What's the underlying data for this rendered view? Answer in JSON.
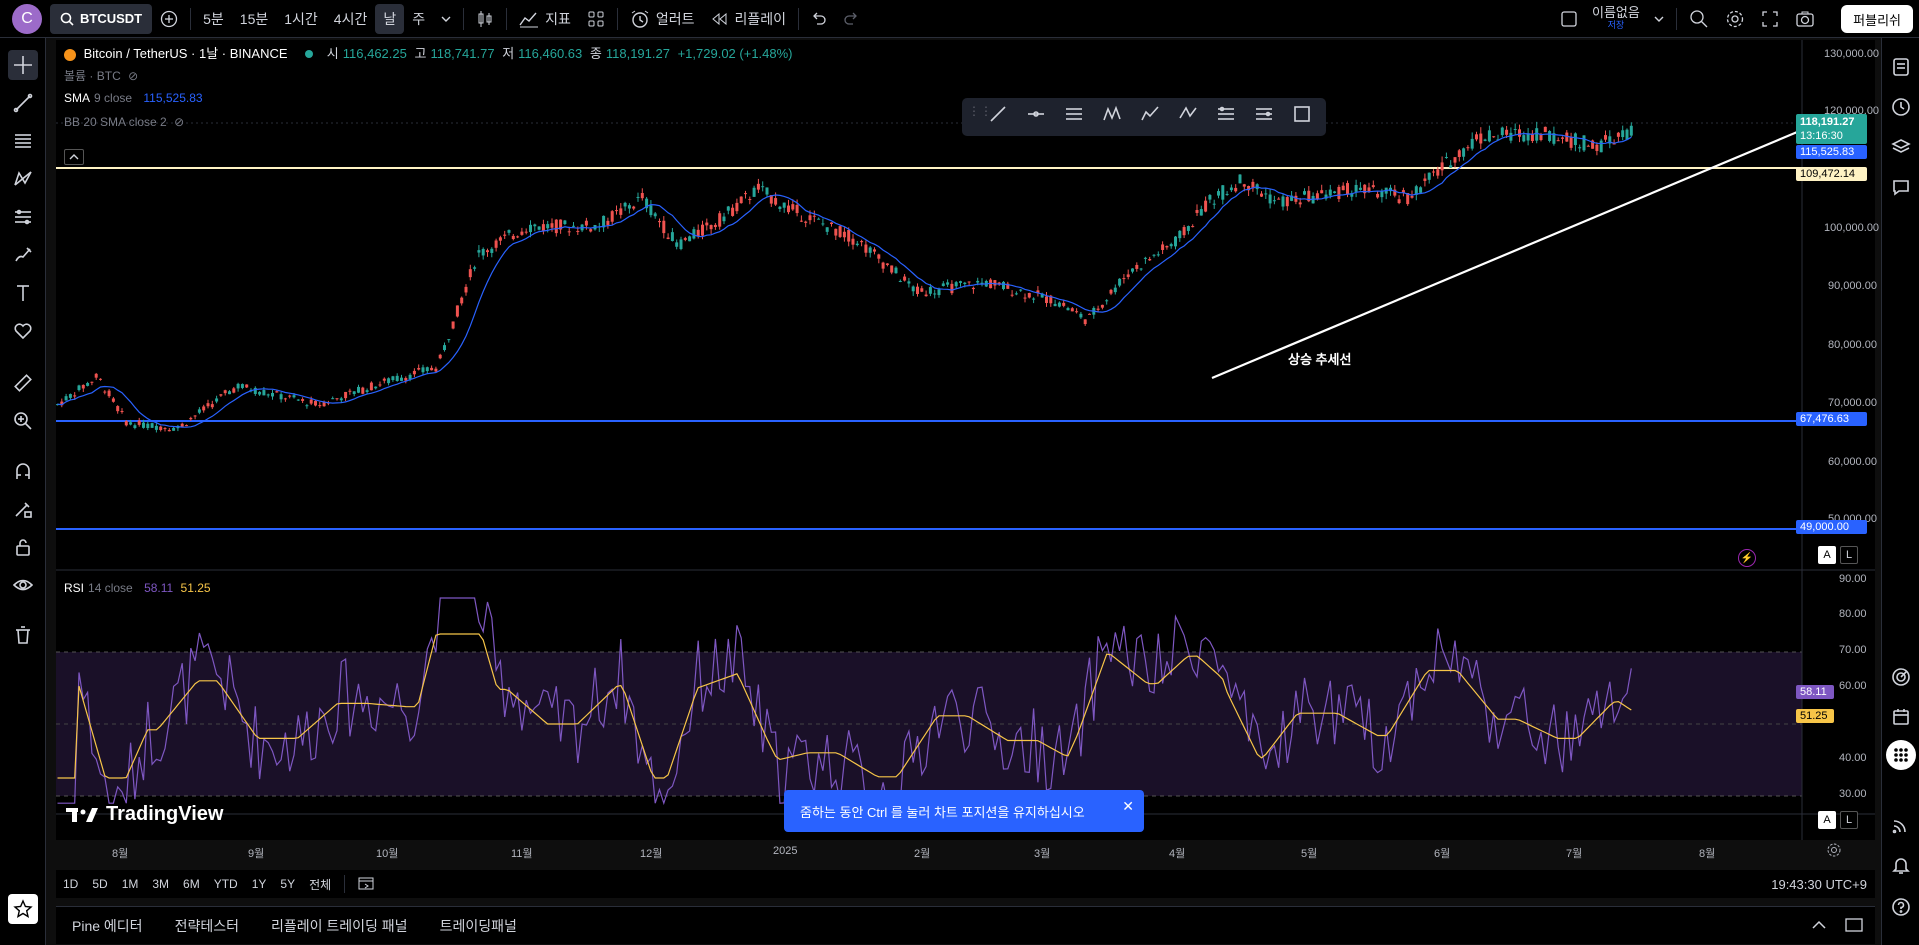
{
  "topbar": {
    "avatar_letter": "C",
    "symbol": "BTCUSDT",
    "timeframes": [
      "5분",
      "15분",
      "1시간",
      "4시간",
      "날",
      "주"
    ],
    "active_timeframe": "날",
    "indicators_label": "지표",
    "alert_label": "얼러트",
    "replay_label": "리플레이",
    "layout_name": "이름없음",
    "layout_sub": "저장",
    "publish_label": "퍼블리쉬"
  },
  "legend": {
    "title": "Bitcoin / TetherUS · 1날 · BINANCE",
    "open_label": "시",
    "open": "116,462.25",
    "high_label": "고",
    "high": "118,741.77",
    "low_label": "저",
    "low": "116,460.63",
    "close_label": "종",
    "close": "118,191.27",
    "change": "+1,729.02 (+1.48%)",
    "volume": "볼륨 · BTC",
    "sma_label": "SMA",
    "sma_params": "9 close",
    "sma_value": "115,525.83",
    "bb_label": "BB 20 SMA close 2"
  },
  "price_axis": [
    "130,000.00",
    "120,000.00",
    "100,000.00",
    "90,000.00",
    "80,000.00",
    "70,000.00",
    "60,000.00",
    "50,000.00"
  ],
  "price_tags": {
    "last": "118,191.27",
    "countdown": "13:16:30",
    "sma": "115,525.83",
    "level_yellow": "109,472.14",
    "level_blue1": "67,476.63",
    "level_blue2": "49,000.00",
    "rsi": "58.11",
    "rsi_ma": "51.25"
  },
  "rsi_legend": {
    "label": "RSI",
    "params": "14 close",
    "value": "58.11",
    "ma": "51.25"
  },
  "rsi_axis": [
    "90.00",
    "80.00",
    "70.00",
    "60.00",
    "40.00",
    "30.00"
  ],
  "trend_label": "상승 추세선",
  "time_axis": [
    "8월",
    "9월",
    "10월",
    "11월",
    "12월",
    "2025",
    "2월",
    "3월",
    "4월",
    "5월",
    "6월",
    "7월",
    "8월"
  ],
  "range_buttons": [
    "1D",
    "5D",
    "1M",
    "3M",
    "6M",
    "YTD",
    "1Y",
    "5Y",
    "전체"
  ],
  "clock": "19:43:30 UTC+9",
  "footer_tabs": [
    "Pine 에디터",
    "전략테스터",
    "리플레이 트레이딩 패널",
    "트레이딩패널"
  ],
  "toast": "줌하는 동안 Ctrl 를 눌러 차트 포지션을 유지하십시오",
  "watermark": "TradingView",
  "scale_buttons": [
    "A",
    "L"
  ],
  "colors": {
    "up": "#26a69a",
    "down": "#ef5350",
    "sma": "#2962ff",
    "rsi": "#7e57c2",
    "rsi_ma": "#f7c548",
    "level_yellow": "#fff3c4",
    "level_blue": "#2962ff"
  }
}
